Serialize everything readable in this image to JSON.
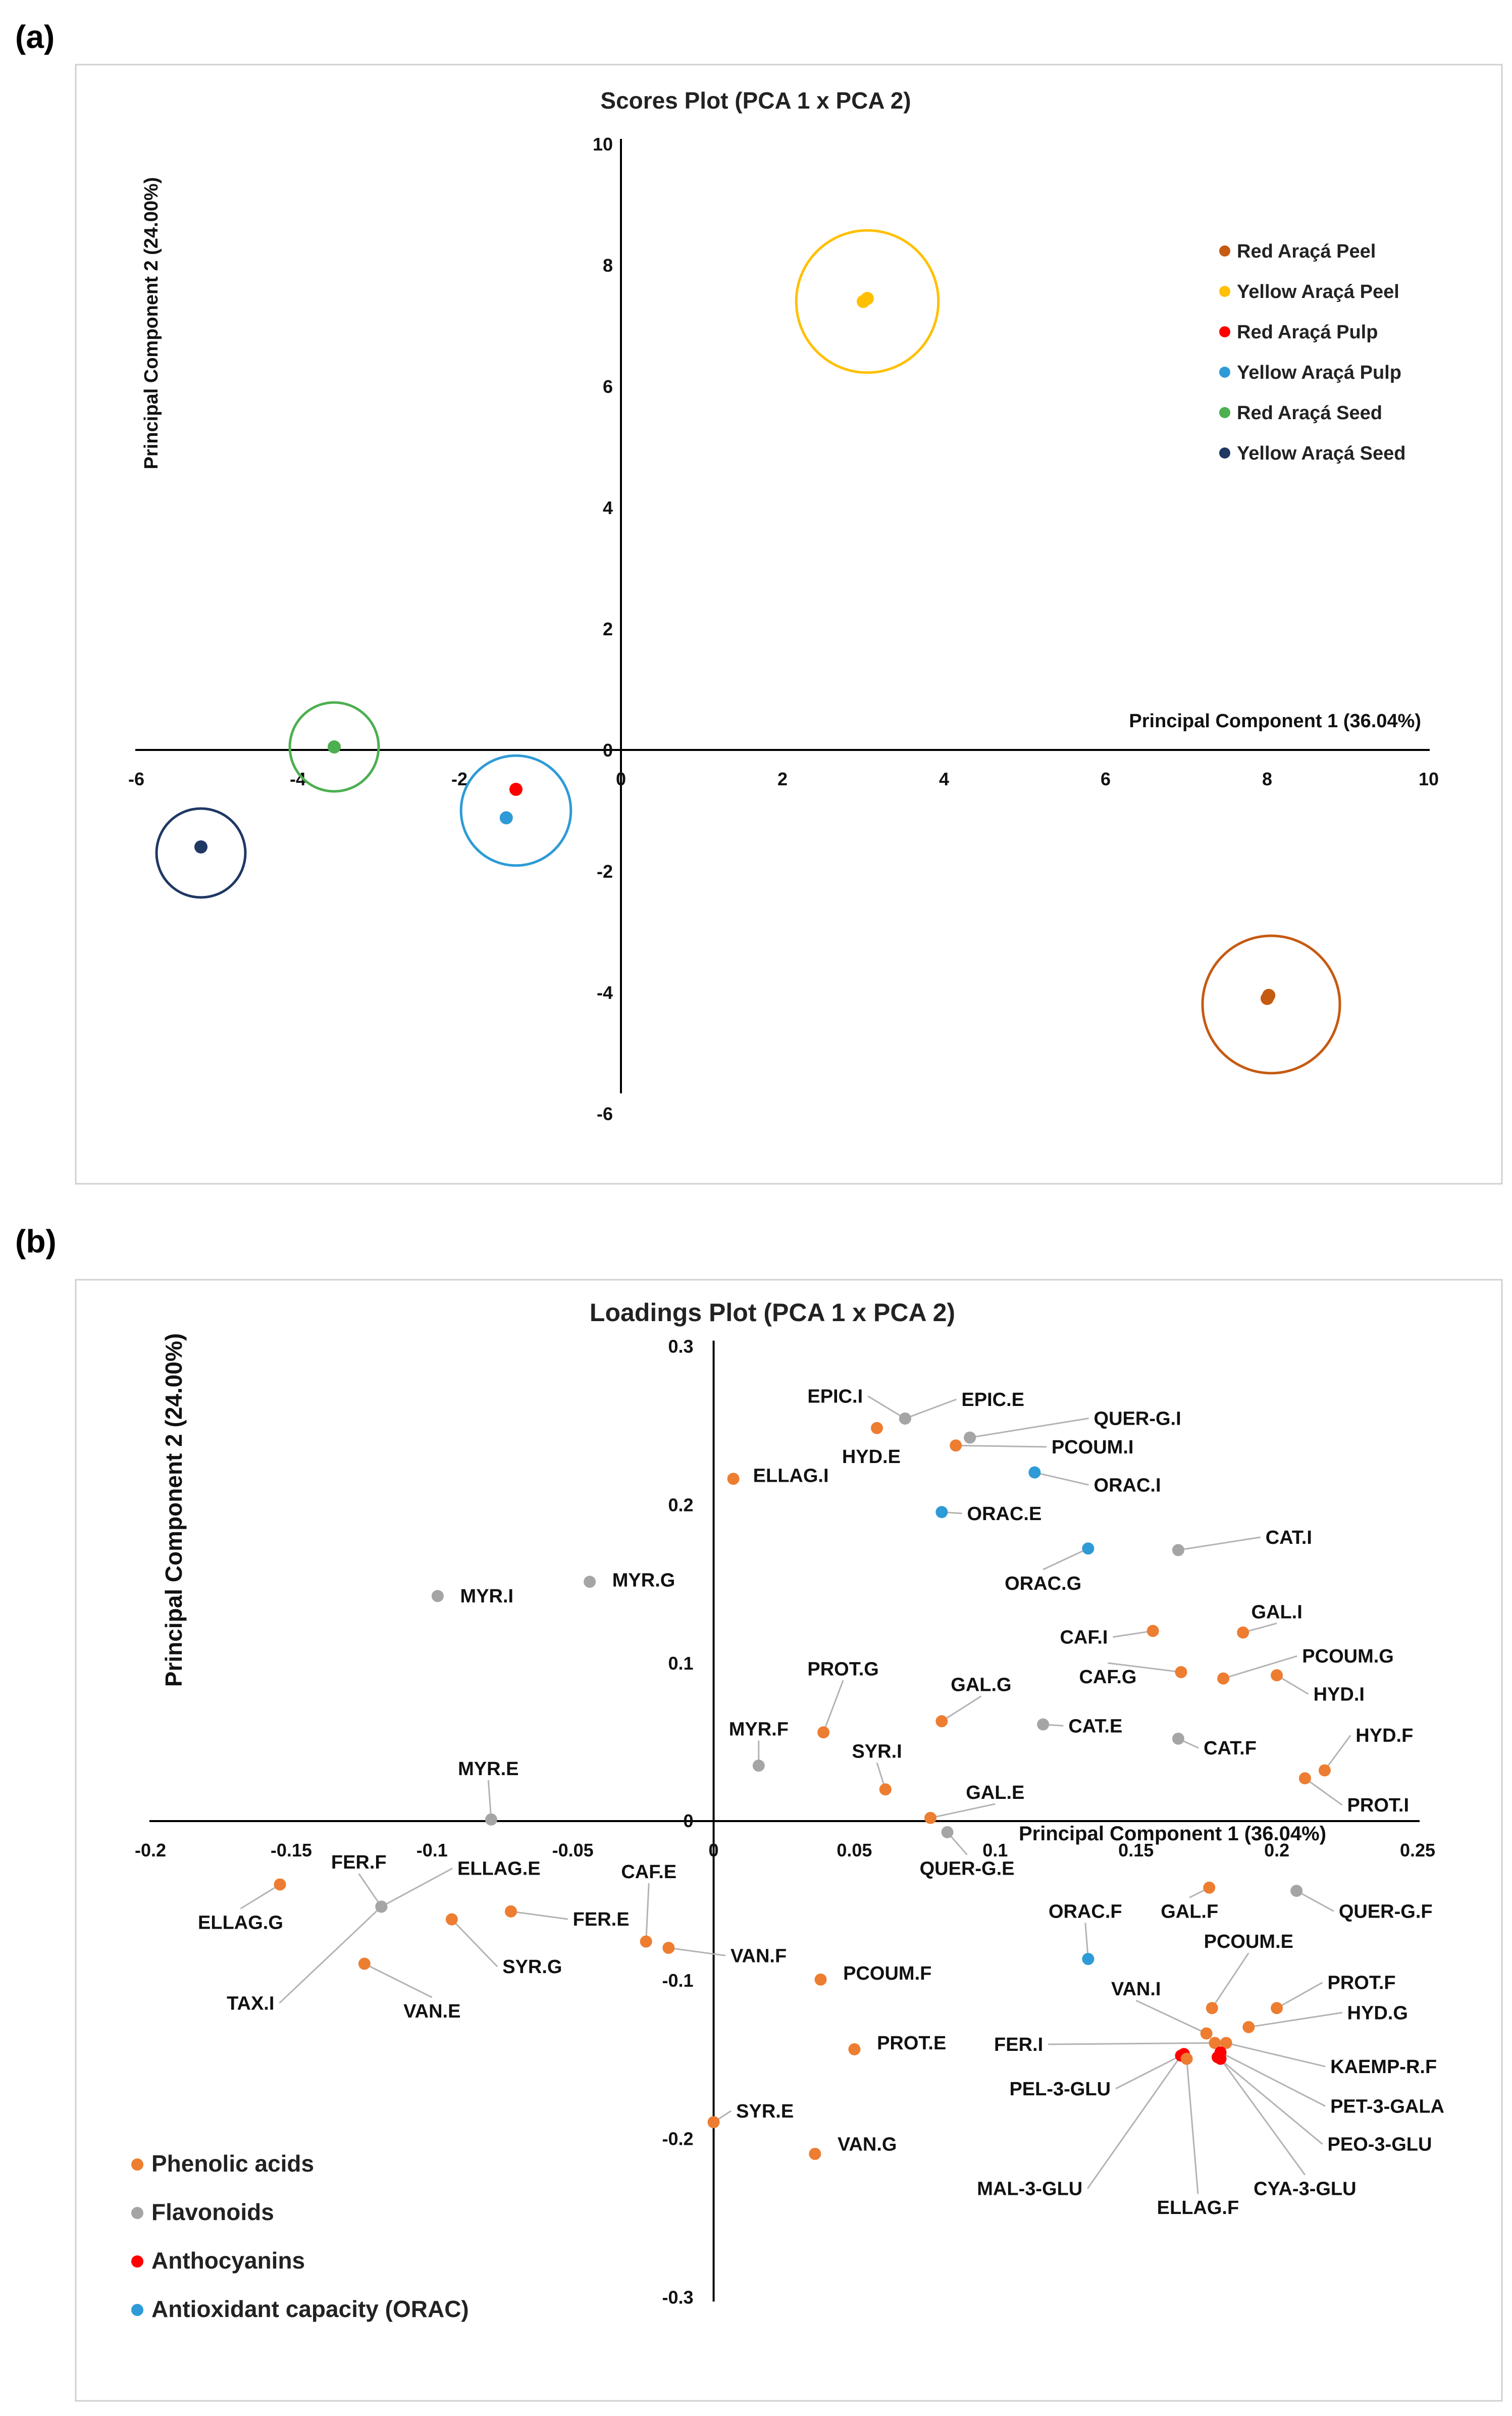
{
  "panels": {
    "a": "(a)",
    "b": "(b)"
  },
  "chart_data": [
    {
      "type": "scatter",
      "title": "Scores Plot (PCA 1 x PCA 2)",
      "xlabel": "Principal Component 1 (36.04%)",
      "ylabel": "Principal Component 2 (24.00%)",
      "xlim": [
        -6,
        10
      ],
      "ylim": [
        -6,
        10
      ],
      "xticks": [
        -6,
        -4,
        -2,
        0,
        2,
        4,
        6,
        8,
        10
      ],
      "yticks": [
        -6,
        -4,
        -2,
        0,
        2,
        4,
        6,
        8,
        10
      ],
      "legend_position": "top-right",
      "series": [
        {
          "name": "Red Araçá Peel",
          "color": "#c55a11",
          "points": [
            [
              8.0,
              -4.1
            ],
            [
              8.02,
              -4.05
            ]
          ],
          "circle": {
            "cx": 8.05,
            "cy": -4.2,
            "r": 0.85
          }
        },
        {
          "name": "Yellow Araçá Peel",
          "color": "#ffc000",
          "points": [
            [
              3.0,
              7.4
            ],
            [
              3.05,
              7.45
            ]
          ],
          "circle": {
            "cx": 3.05,
            "cy": 7.4,
            "r": 0.88
          }
        },
        {
          "name": "Red Araçá Pulp",
          "color": "#ff0000",
          "points": [
            [
              -1.3,
              -0.65
            ]
          ],
          "circle": null
        },
        {
          "name": "Yellow Araçá Pulp",
          "color": "#2e9bd6",
          "points": [
            [
              -1.42,
              -1.12
            ]
          ],
          "circle": {
            "cx": -1.3,
            "cy": -1.0,
            "r": 0.68
          }
        },
        {
          "name": "Red Araçá Seed",
          "color": "#4caf50",
          "points": [
            [
              -3.55,
              0.05
            ]
          ],
          "circle": {
            "cx": -3.55,
            "cy": 0.05,
            "r": 0.55
          }
        },
        {
          "name": "Yellow Araçá Seed",
          "color": "#1f3864",
          "points": [
            [
              -5.2,
              -1.6
            ]
          ],
          "circle": {
            "cx": -5.2,
            "cy": -1.7,
            "r": 0.55
          }
        }
      ]
    },
    {
      "type": "scatter",
      "title": "Loadings Plot (PCA 1 x PCA 2)",
      "xlabel": "Principal Component 1 (36.04%)",
      "ylabel": "Principal Component 2 (24.00%)",
      "xlim": [
        -0.2,
        0.25
      ],
      "ylim": [
        -0.3,
        0.3
      ],
      "xticks": [
        -0.2,
        -0.15,
        -0.1,
        -0.05,
        0,
        0.05,
        0.1,
        0.15,
        0.2,
        0.25
      ],
      "xtick_labels": [
        "-0.2",
        "-0.15",
        "-0.1",
        "-0.05",
        "0",
        "0.05",
        "0.1",
        "0.15",
        "0.2",
        "0.25"
      ],
      "yticks": [
        -0.3,
        -0.2,
        -0.1,
        0,
        0.1,
        0.2,
        0.3
      ],
      "ytick_labels": [
        "-0.3",
        "-0.2",
        "-0.1",
        "0",
        "0.1",
        "0.2",
        "0.3"
      ],
      "legend_position": "bottom-left",
      "categories": [
        {
          "name": "Phenolic acids",
          "color": "#ed7d31"
        },
        {
          "name": "Flavonoids",
          "color": "#a5a5a5"
        },
        {
          "name": "Anthocyanins",
          "color": "#ff0000"
        },
        {
          "name": "Antioxidant capacity (ORAC)",
          "color": "#2e9bd6"
        }
      ],
      "points": [
        {
          "label": "EPIC.I",
          "x": 0.068,
          "y": 0.254,
          "cat": "Flavonoids",
          "lx": 0.053,
          "ly": 0.264,
          "anchor": "end"
        },
        {
          "label": "EPIC.E",
          "x": 0.068,
          "y": 0.254,
          "cat": "Flavonoids",
          "lx": 0.088,
          "ly": 0.262,
          "anchor": "start"
        },
        {
          "label": "QUER-G.I",
          "x": 0.091,
          "y": 0.242,
          "cat": "Flavonoids",
          "lx": 0.135,
          "ly": 0.25,
          "anchor": "start"
        },
        {
          "label": "HYD.E",
          "x": 0.058,
          "y": 0.248,
          "cat": "Phenolic acids",
          "lx": 0.056,
          "ly": 0.226,
          "anchor": "middle"
        },
        {
          "label": "PCOUM.I",
          "x": 0.086,
          "y": 0.237,
          "cat": "Phenolic acids",
          "lx": 0.12,
          "ly": 0.232,
          "anchor": "start"
        },
        {
          "label": "ORAC.I",
          "x": 0.114,
          "y": 0.22,
          "cat": "Antioxidant capacity (ORAC)",
          "lx": 0.135,
          "ly": 0.208,
          "anchor": "start"
        },
        {
          "label": "ELLAG.I",
          "x": 0.007,
          "y": 0.216,
          "cat": "Phenolic acids",
          "lx": 0.014,
          "ly": 0.214,
          "anchor": "start"
        },
        {
          "label": "ORAC.E",
          "x": 0.081,
          "y": 0.195,
          "cat": "Antioxidant capacity (ORAC)",
          "lx": 0.09,
          "ly": 0.19,
          "anchor": "start"
        },
        {
          "label": "ORAC.G",
          "x": 0.133,
          "y": 0.172,
          "cat": "Antioxidant capacity (ORAC)",
          "lx": 0.117,
          "ly": 0.146,
          "anchor": "middle"
        },
        {
          "label": "CAT.I",
          "x": 0.165,
          "y": 0.171,
          "cat": "Flavonoids",
          "lx": 0.196,
          "ly": 0.175,
          "anchor": "start"
        },
        {
          "label": "MYR.I",
          "x": -0.098,
          "y": 0.142,
          "cat": "Flavonoids",
          "lx": -0.09,
          "ly": 0.138,
          "anchor": "start"
        },
        {
          "label": "MYR.G",
          "x": -0.044,
          "y": 0.151,
          "cat": "Flavonoids",
          "lx": -0.036,
          "ly": 0.148,
          "anchor": "start"
        },
        {
          "label": "GAL.I",
          "x": 0.188,
          "y": 0.119,
          "cat": "Phenolic acids",
          "lx": 0.2,
          "ly": 0.128,
          "anchor": "middle"
        },
        {
          "label": "CAF.I",
          "x": 0.156,
          "y": 0.12,
          "cat": "Phenolic acids",
          "lx": 0.14,
          "ly": 0.112,
          "anchor": "end"
        },
        {
          "label": "PCOUM.G",
          "x": 0.181,
          "y": 0.09,
          "cat": "Phenolic acids",
          "lx": 0.209,
          "ly": 0.1,
          "anchor": "start"
        },
        {
          "label": "CAF.G",
          "x": 0.166,
          "y": 0.094,
          "cat": "Phenolic acids",
          "lx": 0.14,
          "ly": 0.087,
          "anchor": "middle"
        },
        {
          "label": "HYD.I",
          "x": 0.2,
          "y": 0.092,
          "cat": "Phenolic acids",
          "lx": 0.213,
          "ly": 0.076,
          "anchor": "start"
        },
        {
          "label": "PROT.G",
          "x": 0.039,
          "y": 0.056,
          "cat": "Phenolic acids",
          "lx": 0.046,
          "ly": 0.092,
          "anchor": "middle"
        },
        {
          "label": "GAL.G",
          "x": 0.081,
          "y": 0.063,
          "cat": "Phenolic acids",
          "lx": 0.095,
          "ly": 0.082,
          "anchor": "middle"
        },
        {
          "label": "CAT.E",
          "x": 0.117,
          "y": 0.061,
          "cat": "Flavonoids",
          "lx": 0.126,
          "ly": 0.056,
          "anchor": "start"
        },
        {
          "label": "CAT.F",
          "x": 0.165,
          "y": 0.052,
          "cat": "Flavonoids",
          "lx": 0.174,
          "ly": 0.042,
          "anchor": "start"
        },
        {
          "label": "HYD.F",
          "x": 0.217,
          "y": 0.032,
          "cat": "Phenolic acids",
          "lx": 0.228,
          "ly": 0.05,
          "anchor": "start"
        },
        {
          "label": "PROT.I",
          "x": 0.21,
          "y": 0.027,
          "cat": "Phenolic acids",
          "lx": 0.225,
          "ly": 0.006,
          "anchor": "start"
        },
        {
          "label": "MYR.F",
          "x": 0.016,
          "y": 0.035,
          "cat": "Flavonoids",
          "lx": 0.016,
          "ly": 0.054,
          "anchor": "middle"
        },
        {
          "label": "SYR.I",
          "x": 0.061,
          "y": 0.02,
          "cat": "Phenolic acids",
          "lx": 0.058,
          "ly": 0.04,
          "anchor": "middle"
        },
        {
          "label": "GAL.E",
          "x": 0.077,
          "y": 0.002,
          "cat": "Phenolic acids",
          "lx": 0.1,
          "ly": 0.014,
          "anchor": "middle"
        },
        {
          "label": "MYR.E",
          "x": -0.079,
          "y": 0.001,
          "cat": "Flavonoids",
          "lx": -0.08,
          "ly": 0.029,
          "anchor": "middle"
        },
        {
          "label": "QUER-G.E",
          "x": 0.083,
          "y": -0.007,
          "cat": "Flavonoids",
          "lx": 0.09,
          "ly": -0.034,
          "anchor": "middle"
        },
        {
          "label": "ELLAG.G",
          "x": -0.154,
          "y": -0.04,
          "cat": "Phenolic acids",
          "lx": -0.168,
          "ly": -0.068,
          "anchor": "middle"
        },
        {
          "label": "FER.F",
          "x": -0.118,
          "y": -0.054,
          "cat": "Flavonoids",
          "lx": -0.126,
          "ly": -0.03,
          "anchor": "middle"
        },
        {
          "label": "ELLAG.E",
          "x": -0.118,
          "y": -0.054,
          "cat": "Flavonoids",
          "lx": -0.091,
          "ly": -0.034,
          "anchor": "start"
        },
        {
          "label": "TAX.I",
          "x": -0.118,
          "y": -0.054,
          "cat": "Flavonoids",
          "lx": -0.156,
          "ly": -0.119,
          "anchor": "end"
        },
        {
          "label": "SYR.G",
          "x": -0.093,
          "y": -0.062,
          "cat": "Phenolic acids",
          "lx": -0.075,
          "ly": -0.096,
          "anchor": "start"
        },
        {
          "label": "FER.E",
          "x": -0.072,
          "y": -0.057,
          "cat": "Phenolic acids",
          "lx": -0.05,
          "ly": -0.066,
          "anchor": "start"
        },
        {
          "label": "VAN.E",
          "x": -0.124,
          "y": -0.09,
          "cat": "Phenolic acids",
          "lx": -0.1,
          "ly": -0.124,
          "anchor": "middle"
        },
        {
          "label": "CAF.E",
          "x": -0.024,
          "y": -0.076,
          "cat": "Phenolic acids",
          "lx": -0.023,
          "ly": -0.036,
          "anchor": "middle"
        },
        {
          "label": "VAN.F",
          "x": -0.016,
          "y": -0.08,
          "cat": "Phenolic acids",
          "lx": 0.006,
          "ly": -0.089,
          "anchor": "start"
        },
        {
          "label": "PCOUM.F",
          "x": 0.038,
          "y": -0.1,
          "cat": "Phenolic acids",
          "lx": 0.046,
          "ly": -0.1,
          "anchor": "start"
        },
        {
          "label": "PROT.E",
          "x": 0.05,
          "y": -0.144,
          "cat": "Phenolic acids",
          "lx": 0.058,
          "ly": -0.144,
          "anchor": "start"
        },
        {
          "label": "SYR.E",
          "x": 0.0,
          "y": -0.19,
          "cat": "Phenolic acids",
          "lx": 0.008,
          "ly": -0.187,
          "anchor": "start"
        },
        {
          "label": "VAN.G",
          "x": 0.036,
          "y": -0.21,
          "cat": "Phenolic acids",
          "lx": 0.044,
          "ly": -0.208,
          "anchor": "start"
        },
        {
          "label": "GAL.F",
          "x": 0.176,
          "y": -0.042,
          "cat": "Phenolic acids",
          "lx": 0.169,
          "ly": -0.061,
          "anchor": "middle"
        },
        {
          "label": "QUER-G.F",
          "x": 0.207,
          "y": -0.044,
          "cat": "Flavonoids",
          "lx": 0.222,
          "ly": -0.061,
          "anchor": "start"
        },
        {
          "label": "ORAC.F",
          "x": 0.133,
          "y": -0.087,
          "cat": "Antioxidant capacity (ORAC)",
          "lx": 0.132,
          "ly": -0.061,
          "anchor": "middle"
        },
        {
          "label": "PCOUM.E",
          "x": 0.177,
          "y": -0.118,
          "cat": "Phenolic acids",
          "lx": 0.19,
          "ly": -0.08,
          "anchor": "middle"
        },
        {
          "label": "VAN.I",
          "x": 0.175,
          "y": -0.134,
          "cat": "Phenolic acids",
          "lx": 0.15,
          "ly": -0.11,
          "anchor": "middle"
        },
        {
          "label": "PROT.F",
          "x": 0.2,
          "y": -0.118,
          "cat": "Phenolic acids",
          "lx": 0.218,
          "ly": -0.106,
          "anchor": "start"
        },
        {
          "label": "HYD.G",
          "x": 0.19,
          "y": -0.13,
          "cat": "Phenolic acids",
          "lx": 0.225,
          "ly": -0.125,
          "anchor": "start"
        },
        {
          "label": "FER.I",
          "x": 0.178,
          "y": -0.14,
          "cat": "Phenolic acids",
          "lx": 0.117,
          "ly": -0.145,
          "anchor": "end"
        },
        {
          "label": "KAEMP-R.F",
          "x": 0.182,
          "y": -0.14,
          "cat": "Phenolic acids",
          "lx": 0.219,
          "ly": -0.159,
          "anchor": "start"
        },
        {
          "label": "PEL-3-GLU",
          "x": 0.167,
          "y": -0.147,
          "cat": "Anthocyanins",
          "lx": 0.141,
          "ly": -0.173,
          "anchor": "end"
        },
        {
          "label": "PET-3-GALA",
          "x": 0.18,
          "y": -0.146,
          "cat": "Anthocyanins",
          "lx": 0.219,
          "ly": -0.184,
          "anchor": "start"
        },
        {
          "label": "PEO-3-GLU",
          "x": 0.179,
          "y": -0.149,
          "cat": "Anthocyanins",
          "lx": 0.218,
          "ly": -0.208,
          "anchor": "start"
        },
        {
          "label": "MAL-3-GLU",
          "x": 0.166,
          "y": -0.148,
          "cat": "Anthocyanins",
          "lx": 0.131,
          "ly": -0.236,
          "anchor": "end"
        },
        {
          "label": "ELLAG.F",
          "x": 0.168,
          "y": -0.15,
          "cat": "Phenolic acids",
          "lx": 0.172,
          "ly": -0.248,
          "anchor": "middle"
        },
        {
          "label": "CYA-3-GLU",
          "x": 0.18,
          "y": -0.15,
          "cat": "Anthocyanins",
          "lx": 0.21,
          "ly": -0.236,
          "anchor": "middle"
        }
      ]
    }
  ]
}
